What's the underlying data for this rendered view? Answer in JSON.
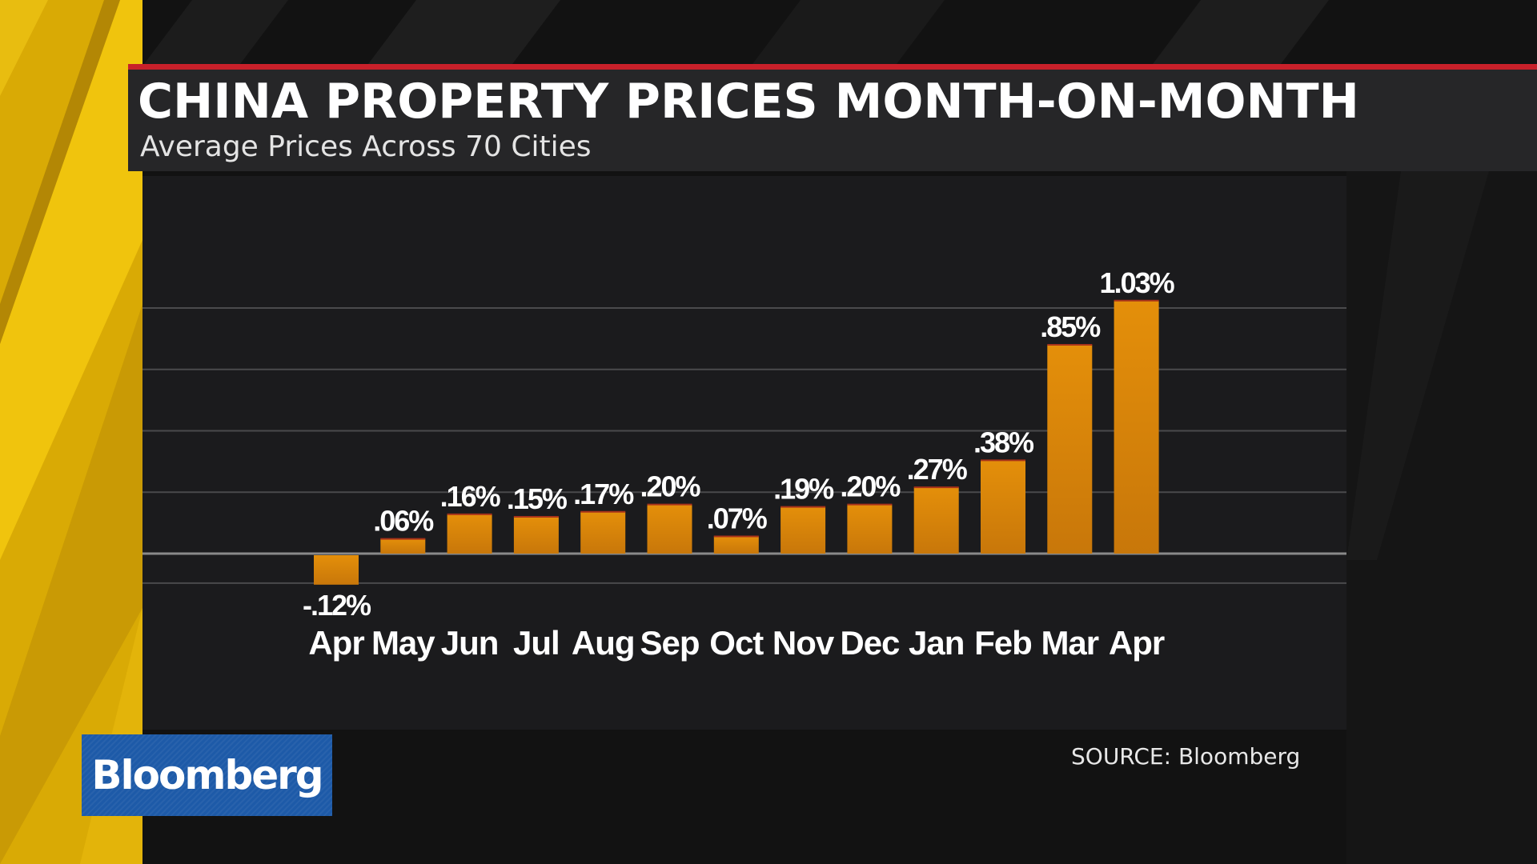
{
  "chart_data": {
    "type": "bar",
    "title": "CHINA PROPERTY PRICES MONTH-ON-MONTH",
    "subtitle": "Average Prices Across 70 Cities",
    "categories": [
      "Apr",
      "May",
      "Jun",
      "Jul",
      "Aug",
      "Sep",
      "Oct",
      "Nov",
      "Dec",
      "Jan",
      "Feb",
      "Mar",
      "Apr"
    ],
    "values": [
      -0.12,
      0.06,
      0.16,
      0.15,
      0.17,
      0.2,
      0.07,
      0.19,
      0.2,
      0.27,
      0.38,
      0.85,
      1.03
    ],
    "value_labels": [
      "-.12%",
      ".06%",
      ".16%",
      ".15%",
      ".17%",
      ".20%",
      ".07%",
      ".19%",
      ".20%",
      ".27%",
      ".38%",
      ".85%",
      "1.03%"
    ],
    "ylim": [
      -0.12,
      1.03
    ],
    "grid": true,
    "legend": "none",
    "colors": {
      "bar": "#e48f0a",
      "bar_dark": "#c8770a",
      "grid": "#4a4a4c",
      "zero_line": "#8a8a8a",
      "title_rule": "#c8202a"
    }
  },
  "footer": {
    "source": "SOURCE: Bloomberg",
    "logo": "Bloomberg"
  }
}
